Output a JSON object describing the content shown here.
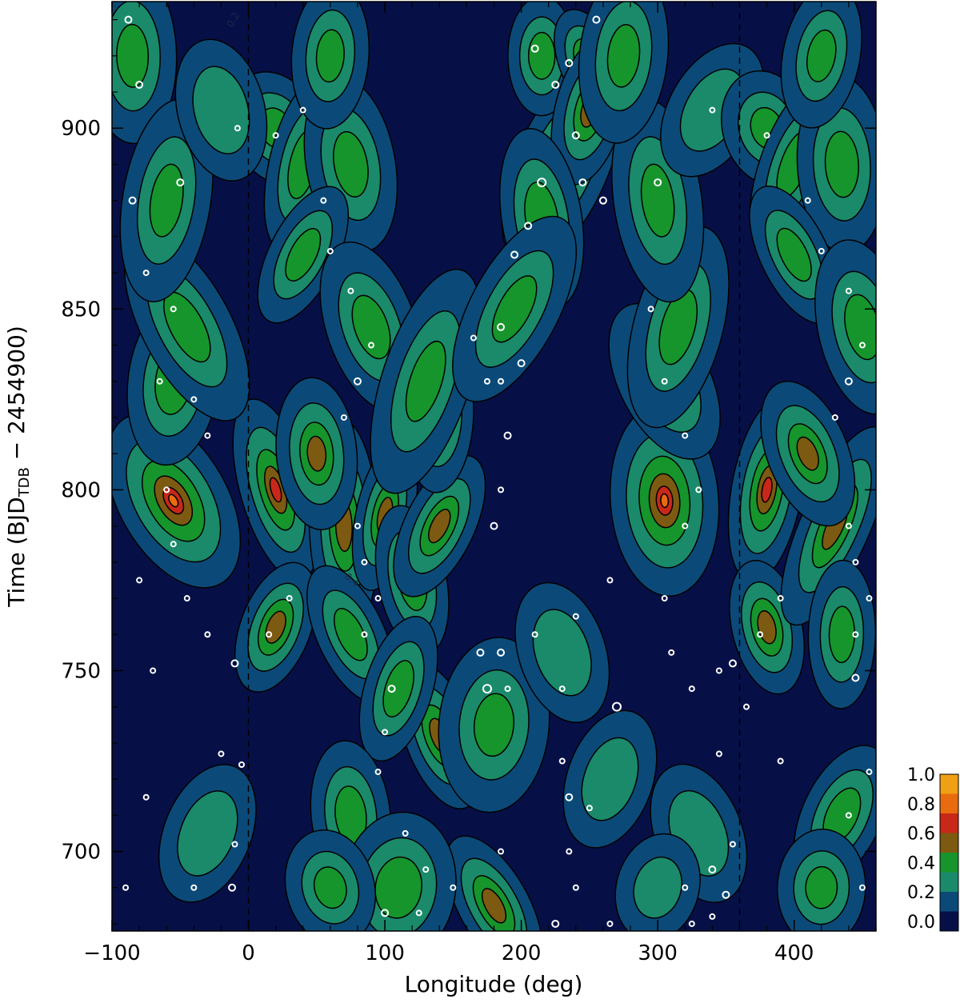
{
  "chart_data": {
    "type": "heatmap",
    "subtype": "filled-contour",
    "xlabel": "Longitude (deg)",
    "ylabel": {
      "main": "Time (BJD",
      "subscript": "TDB",
      "suffix": " − 2454900)"
    },
    "xlim": [
      -100,
      460
    ],
    "ylim": [
      678,
      935
    ],
    "xticks": [
      -100,
      0,
      100,
      200,
      300,
      400
    ],
    "xtick_labels": [
      "−100",
      "0",
      "100",
      "200",
      "300",
      "400"
    ],
    "yticks": [
      700,
      750,
      800,
      850,
      900
    ],
    "ytick_labels": [
      "700",
      "750",
      "800",
      "850",
      "900"
    ],
    "reference_lines_x": [
      0,
      360
    ],
    "contour_labels": [
      "0.2",
      "0.4"
    ],
    "colorbar": {
      "levels": [
        0.0,
        0.2,
        0.4,
        0.6,
        0.8,
        1.0
      ],
      "labels": [
        "0.0",
        "0.2",
        "0.4",
        "0.6",
        "0.8",
        "1.0"
      ],
      "colors": [
        "#061047",
        "#0b4a78",
        "#1a8a6a",
        "#16952c",
        "#7d5a12",
        "#c8281a",
        "#e86b10",
        "#f0a014"
      ]
    },
    "blobs": [
      {
        "x": -55,
        "y": 797,
        "w": 45,
        "h": 30,
        "v": 0.62
      },
      {
        "x": -55,
        "y": 830,
        "w": 40,
        "h": 28,
        "v": 0.36
      },
      {
        "x": 20,
        "y": 800,
        "w": 30,
        "h": 30,
        "v": 0.5
      },
      {
        "x": 20,
        "y": 762,
        "w": 30,
        "h": 22,
        "v": 0.45
      },
      {
        "x": 70,
        "y": 790,
        "w": 30,
        "h": 35,
        "v": 0.42
      },
      {
        "x": 75,
        "y": 760,
        "w": 30,
        "h": 25,
        "v": 0.33
      },
      {
        "x": 100,
        "y": 793,
        "w": 25,
        "h": 25,
        "v": 0.42
      },
      {
        "x": 120,
        "y": 775,
        "w": 30,
        "h": 25,
        "v": 0.38
      },
      {
        "x": 140,
        "y": 790,
        "w": 30,
        "h": 25,
        "v": 0.42
      },
      {
        "x": 140,
        "y": 820,
        "w": 30,
        "h": 25,
        "v": 0.36
      },
      {
        "x": 140,
        "y": 732,
        "w": 30,
        "h": 25,
        "v": 0.42
      },
      {
        "x": 110,
        "y": 745,
        "w": 30,
        "h": 25,
        "v": 0.35
      },
      {
        "x": 75,
        "y": 710,
        "w": 35,
        "h": 25,
        "v": 0.35
      },
      {
        "x": 180,
        "y": 685,
        "w": 30,
        "h": 25,
        "v": 0.45
      },
      {
        "x": 110,
        "y": 690,
        "w": 50,
        "h": 25,
        "v": 0.38
      },
      {
        "x": 60,
        "y": 690,
        "w": 40,
        "h": 20,
        "v": 0.3
      },
      {
        "x": -30,
        "y": 705,
        "w": 40,
        "h": 25,
        "v": 0.28
      },
      {
        "x": -85,
        "y": 920,
        "w": 40,
        "h": 30,
        "v": 0.3
      },
      {
        "x": 20,
        "y": 900,
        "w": 40,
        "h": 20,
        "v": 0.3
      },
      {
        "x": 40,
        "y": 890,
        "w": 30,
        "h": 30,
        "v": 0.35
      },
      {
        "x": 75,
        "y": 890,
        "w": 40,
        "h": 30,
        "v": 0.32
      },
      {
        "x": 40,
        "y": 865,
        "w": 30,
        "h": 25,
        "v": 0.34
      },
      {
        "x": 60,
        "y": 920,
        "w": 35,
        "h": 25,
        "v": 0.3
      },
      {
        "x": 90,
        "y": 845,
        "w": 40,
        "h": 30,
        "v": 0.32
      },
      {
        "x": 130,
        "y": 830,
        "w": 40,
        "h": 40,
        "v": 0.3
      },
      {
        "x": 50,
        "y": 810,
        "w": 35,
        "h": 25,
        "v": 0.4
      },
      {
        "x": -45,
        "y": 845,
        "w": 40,
        "h": 35,
        "v": 0.32
      },
      {
        "x": -60,
        "y": 880,
        "w": 40,
        "h": 35,
        "v": 0.3
      },
      {
        "x": -20,
        "y": 905,
        "w": 40,
        "h": 25,
        "v": 0.28
      },
      {
        "x": 230,
        "y": 890,
        "w": 40,
        "h": 35,
        "v": 0.45
      },
      {
        "x": 215,
        "y": 920,
        "w": 30,
        "h": 20,
        "v": 0.35
      },
      {
        "x": 250,
        "y": 918,
        "w": 25,
        "h": 18,
        "v": 0.55
      },
      {
        "x": 250,
        "y": 905,
        "w": 30,
        "h": 25,
        "v": 0.4
      },
      {
        "x": 215,
        "y": 875,
        "w": 35,
        "h": 30,
        "v": 0.38
      },
      {
        "x": 195,
        "y": 850,
        "w": 40,
        "h": 35,
        "v": 0.3
      },
      {
        "x": 180,
        "y": 735,
        "w": 50,
        "h": 30,
        "v": 0.3
      },
      {
        "x": 230,
        "y": 755,
        "w": 40,
        "h": 25,
        "v": 0.28
      },
      {
        "x": 265,
        "y": 720,
        "w": 40,
        "h": 25,
        "v": 0.26
      },
      {
        "x": 305,
        "y": 797,
        "w": 45,
        "h": 30,
        "v": 0.62
      },
      {
        "x": 305,
        "y": 830,
        "w": 40,
        "h": 28,
        "v": 0.36
      },
      {
        "x": 380,
        "y": 800,
        "w": 30,
        "h": 30,
        "v": 0.5
      },
      {
        "x": 380,
        "y": 762,
        "w": 30,
        "h": 22,
        "v": 0.45
      },
      {
        "x": 430,
        "y": 790,
        "w": 30,
        "h": 35,
        "v": 0.42
      },
      {
        "x": 435,
        "y": 760,
        "w": 30,
        "h": 25,
        "v": 0.33
      },
      {
        "x": 410,
        "y": 810,
        "w": 35,
        "h": 25,
        "v": 0.4
      },
      {
        "x": 315,
        "y": 845,
        "w": 40,
        "h": 35,
        "v": 0.32
      },
      {
        "x": 300,
        "y": 880,
        "w": 40,
        "h": 35,
        "v": 0.3
      },
      {
        "x": 340,
        "y": 905,
        "w": 40,
        "h": 25,
        "v": 0.28
      },
      {
        "x": 275,
        "y": 920,
        "w": 40,
        "h": 30,
        "v": 0.3
      },
      {
        "x": 380,
        "y": 900,
        "w": 40,
        "h": 20,
        "v": 0.3
      },
      {
        "x": 400,
        "y": 890,
        "w": 30,
        "h": 30,
        "v": 0.35
      },
      {
        "x": 435,
        "y": 890,
        "w": 40,
        "h": 30,
        "v": 0.32
      },
      {
        "x": 400,
        "y": 865,
        "w": 30,
        "h": 25,
        "v": 0.34
      },
      {
        "x": 420,
        "y": 920,
        "w": 35,
        "h": 25,
        "v": 0.3
      },
      {
        "x": 450,
        "y": 845,
        "w": 40,
        "h": 30,
        "v": 0.32
      },
      {
        "x": 435,
        "y": 710,
        "w": 35,
        "h": 25,
        "v": 0.35
      },
      {
        "x": 420,
        "y": 690,
        "w": 40,
        "h": 20,
        "v": 0.3
      },
      {
        "x": 330,
        "y": 705,
        "w": 40,
        "h": 25,
        "v": 0.28
      },
      {
        "x": 300,
        "y": 690,
        "w": 40,
        "h": 20,
        "v": 0.22
      }
    ],
    "spots": [
      [
        -88,
        930,
        4
      ],
      [
        -80,
        912,
        4
      ],
      [
        -50,
        885,
        4
      ],
      [
        -85,
        880,
        4
      ],
      [
        -75,
        860,
        3
      ],
      [
        -55,
        850,
        3
      ],
      [
        -65,
        830,
        3
      ],
      [
        -40,
        825,
        3
      ],
      [
        -60,
        800,
        3
      ],
      [
        -55,
        785,
        3
      ],
      [
        -80,
        775,
        3
      ],
      [
        -45,
        770,
        3
      ],
      [
        -70,
        750,
        3
      ],
      [
        -30,
        760,
        3
      ],
      [
        -10,
        752,
        4
      ],
      [
        -20,
        727,
        3
      ],
      [
        -40,
        690,
        3
      ],
      [
        -10,
        702,
        3
      ],
      [
        -12,
        690,
        4
      ],
      [
        -75,
        715,
        3
      ],
      [
        -90,
        690,
        3
      ],
      [
        -5,
        724,
        3
      ],
      [
        -30,
        815,
        3
      ],
      [
        -8,
        900,
        3
      ],
      [
        20,
        898,
        3
      ],
      [
        55,
        880,
        3
      ],
      [
        60,
        866,
        3
      ],
      [
        75,
        855,
        3
      ],
      [
        90,
        840,
        3
      ],
      [
        80,
        830,
        4
      ],
      [
        70,
        820,
        3
      ],
      [
        80,
        790,
        3
      ],
      [
        85,
        780,
        3
      ],
      [
        95,
        770,
        3
      ],
      [
        105,
        745,
        4
      ],
      [
        100,
        733,
        3
      ],
      [
        95,
        722,
        3
      ],
      [
        115,
        705,
        3
      ],
      [
        130,
        695,
        3
      ],
      [
        150,
        690,
        3
      ],
      [
        125,
        683,
        3
      ],
      [
        100,
        683,
        4
      ],
      [
        40,
        905,
        3
      ],
      [
        15,
        760,
        3
      ],
      [
        30,
        770,
        3
      ],
      [
        85,
        760,
        3
      ],
      [
        180,
        790,
        4
      ],
      [
        185,
        800,
        3
      ],
      [
        190,
        815,
        4
      ],
      [
        185,
        830,
        3
      ],
      [
        200,
        835,
        4
      ],
      [
        185,
        845,
        4
      ],
      [
        195,
        865,
        4
      ],
      [
        205,
        873,
        4
      ],
      [
        215,
        885,
        5
      ],
      [
        210,
        922,
        4
      ],
      [
        225,
        912,
        4
      ],
      [
        235,
        918,
        4
      ],
      [
        255,
        930,
        4
      ],
      [
        240,
        898,
        4
      ],
      [
        245,
        885,
        4
      ],
      [
        260,
        880,
        4
      ],
      [
        175,
        745,
        5
      ],
      [
        190,
        745,
        3
      ],
      [
        230,
        745,
        3
      ],
      [
        185,
        755,
        4
      ],
      [
        210,
        760,
        3
      ],
      [
        240,
        765,
        3
      ],
      [
        230,
        725,
        3
      ],
      [
        235,
        715,
        4
      ],
      [
        250,
        712,
        3
      ],
      [
        185,
        700,
        3
      ],
      [
        235,
        700,
        3
      ],
      [
        240,
        690,
        3
      ],
      [
        225,
        680,
        4
      ],
      [
        265,
        680,
        3
      ],
      [
        270,
        740,
        5
      ],
      [
        265,
        775,
        3
      ],
      [
        165,
        842,
        3
      ],
      [
        175,
        830,
        3
      ],
      [
        170,
        755,
        4
      ],
      [
        320,
        790,
        3
      ],
      [
        305,
        770,
        3
      ],
      [
        310,
        755,
        3
      ],
      [
        325,
        745,
        3
      ],
      [
        345,
        750,
        3
      ],
      [
        355,
        752,
        4
      ],
      [
        345,
        727,
        3
      ],
      [
        320,
        690,
        3
      ],
      [
        340,
        695,
        4
      ],
      [
        350,
        688,
        4
      ],
      [
        340,
        682,
        3
      ],
      [
        325,
        680,
        3
      ],
      [
        355,
        702,
        3
      ],
      [
        295,
        850,
        3
      ],
      [
        305,
        830,
        3
      ],
      [
        320,
        815,
        3
      ],
      [
        330,
        800,
        3
      ],
      [
        300,
        885,
        4
      ],
      [
        340,
        905,
        3
      ],
      [
        380,
        898,
        3
      ],
      [
        410,
        880,
        3
      ],
      [
        420,
        866,
        3
      ],
      [
        440,
        855,
        3
      ],
      [
        450,
        840,
        3
      ],
      [
        440,
        830,
        4
      ],
      [
        430,
        820,
        3
      ],
      [
        440,
        790,
        3
      ],
      [
        445,
        780,
        3
      ],
      [
        455,
        770,
        3
      ],
      [
        445,
        748,
        4
      ],
      [
        455,
        722,
        3
      ],
      [
        440,
        710,
        3
      ],
      [
        450,
        690,
        3
      ],
      [
        375,
        760,
        3
      ],
      [
        390,
        770,
        3
      ],
      [
        445,
        760,
        3
      ],
      [
        390,
        725,
        3
      ],
      [
        365,
        740,
        3
      ]
    ]
  }
}
